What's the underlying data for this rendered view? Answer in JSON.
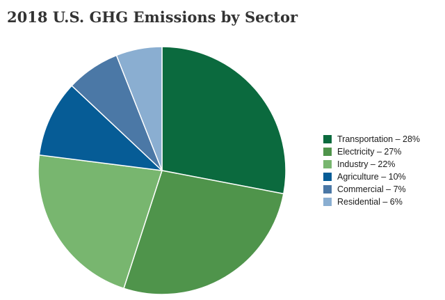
{
  "chart_data": {
    "type": "pie",
    "title": "2018 U.S. GHG Emissions by Sector",
    "slices": [
      {
        "label": "Transportation",
        "value": 28,
        "color": "#0b6a3e"
      },
      {
        "label": "Electricity",
        "value": 27,
        "color": "#4f944b"
      },
      {
        "label": "Industry",
        "value": 22,
        "color": "#78b66f"
      },
      {
        "label": "Agriculture",
        "value": 10,
        "color": "#065c96"
      },
      {
        "label": "Commercial",
        "value": 7,
        "color": "#4b78a6"
      },
      {
        "label": "Residential",
        "value": 6,
        "color": "#8aaed1"
      }
    ],
    "legend_labels": [
      "Transportation – 28%",
      "Electricity – 27%",
      "Industry – 22%",
      "Agriculture – 10%",
      "Commercial – 7%",
      "Residential – 6%"
    ],
    "legend_position": "right",
    "start_angle": "12 o'clock",
    "direction": "clockwise"
  }
}
